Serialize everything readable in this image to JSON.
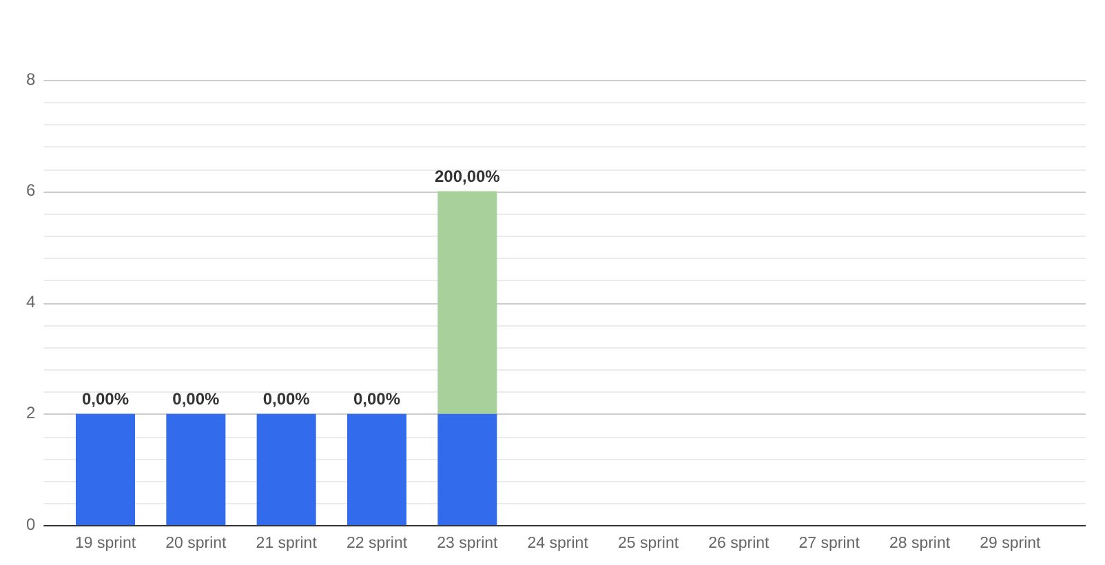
{
  "chart_data": {
    "type": "bar",
    "stacked": true,
    "grid": "y",
    "categories": [
      "19 sprint",
      "20 sprint",
      "21 sprint",
      "22 sprint",
      "23 sprint",
      "24 sprint",
      "25 sprint",
      "26 sprint",
      "27 sprint",
      "28 sprint",
      "29 sprint"
    ],
    "series": [
      {
        "color": "#326bec",
        "values": [
          2,
          2,
          2,
          2,
          2,
          null,
          null,
          null,
          null,
          null,
          null
        ]
      },
      {
        "color": "#a8d09a",
        "values": [
          0,
          0,
          0,
          0,
          4,
          null,
          null,
          null,
          null,
          null,
          null
        ]
      }
    ],
    "annotations": [
      {
        "text": "0,00%",
        "x": "19 sprint",
        "y": 2
      },
      {
        "text": "0,00%",
        "x": "20 sprint",
        "y": 2
      },
      {
        "text": "0,00%",
        "x": "21 sprint",
        "y": 2
      },
      {
        "text": "0,00%",
        "x": "22 sprint",
        "y": 2
      },
      {
        "text": "200,00%",
        "x": "23 sprint",
        "y": 6
      }
    ],
    "ylim": [
      0,
      8
    ],
    "yticks": [
      0,
      {
        "value": 0.4,
        "label": null
      },
      {
        "value": 0.8,
        "label": null
      },
      {
        "value": 1.2,
        "label": null
      },
      {
        "value": 1.6,
        "label": null
      },
      2,
      {
        "value": 2.4,
        "label": null
      },
      {
        "value": 2.8,
        "label": null
      },
      {
        "value": 3.2,
        "label": null
      },
      {
        "value": 3.6,
        "label": null
      },
      4,
      {
        "value": 4.4,
        "label": null
      },
      {
        "value": 4.8,
        "label": null
      },
      {
        "value": 5.2,
        "label": null
      },
      {
        "value": 5.6,
        "label": null
      },
      6,
      {
        "value": 6.4,
        "label": null
      },
      {
        "value": 6.8,
        "label": null
      },
      {
        "value": 7.2,
        "label": null
      },
      {
        "value": 7.6,
        "label": null
      },
      8
    ]
  }
}
